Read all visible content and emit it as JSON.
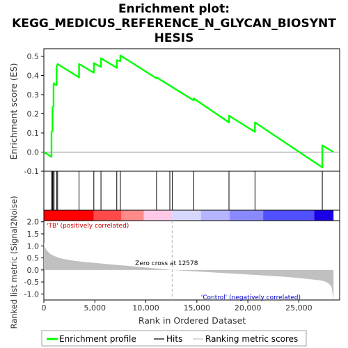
{
  "chart_data": {
    "type": "line",
    "title": [
      "Enrichment plot:",
      "KEGG_MEDICUS_REFERENCE_N_GLYCAN_BIOSYNT",
      "HESIS"
    ],
    "xlabel": "Rank in Ordered Dataset",
    "xlim": [
      0,
      29000
    ],
    "x_ticks": [
      0,
      5000,
      10000,
      15000,
      20000,
      25000
    ],
    "x_tick_labels": [
      "0",
      "5,000",
      "10,000",
      "15,000",
      "20,000",
      "25,000"
    ],
    "n_genes": 28400,
    "es_panel": {
      "ylabel": "Enrichment score (ES)",
      "ylim": [
        -0.1,
        0.54
      ],
      "y_ticks": [
        -0.1,
        0.0,
        0.1,
        0.2,
        0.3,
        0.4,
        0.5
      ],
      "y_tick_labels": [
        "-0.1",
        "0.0",
        "0.1",
        "0.2",
        "0.3",
        "0.4",
        "0.5"
      ],
      "series": [
        {
          "name": "Enrichment profile",
          "color": "#00ff00",
          "x": [
            0,
            750,
            750,
            850,
            850,
            950,
            950,
            1000,
            1000,
            1250,
            1250,
            1350,
            1350,
            3450,
            3450,
            4900,
            4900,
            5600,
            5600,
            7150,
            7150,
            7500,
            7500,
            11050,
            11050,
            14700,
            14700,
            18150,
            18150,
            20700,
            20700,
            27300,
            27300,
            28400
          ],
          "y": [
            0.0,
            -0.025,
            0.105,
            0.11,
            0.235,
            0.24,
            0.355,
            0.36,
            0.355,
            0.35,
            0.445,
            0.46,
            0.46,
            0.39,
            0.46,
            0.415,
            0.465,
            0.445,
            0.49,
            0.44,
            0.48,
            0.475,
            0.505,
            0.385,
            0.39,
            0.27,
            0.28,
            0.155,
            0.19,
            0.105,
            0.155,
            -0.08,
            0.035,
            0.0
          ]
        }
      ]
    },
    "hits": {
      "name": "Hits",
      "color": "#000000",
      "positions": [
        750,
        850,
        950,
        1000,
        1250,
        1350,
        3450,
        4900,
        5600,
        7150,
        7500,
        11050,
        12350,
        12600,
        14700,
        18150,
        20700,
        27300
      ]
    },
    "metric_panel": {
      "ylabel": "Ranked list metric (Signal2Noise)",
      "ylim": [
        -1.25,
        2.05
      ],
      "y_ticks": [
        -1.0,
        -0.5,
        0.0,
        0.5,
        1.0,
        1.5,
        2.0
      ],
      "y_tick_labels": [
        "-1.0",
        "-0.5",
        "0.0",
        "0.5",
        "1.0",
        "1.5",
        "2.0"
      ],
      "zero_cross": 12578,
      "zero_cross_label": "Zero cross at 12578",
      "positive_label": "'TB' (positively correlated)",
      "negative_label": "'Control' (negatively correlated)",
      "fill_color": "#c0c0c0",
      "metric_curve": {
        "x": [
          0,
          100,
          300,
          600,
          1000,
          1500,
          2000,
          3000,
          4000,
          5000,
          6000,
          7000,
          8000,
          9000,
          10000,
          11000,
          12000,
          12578,
          14000,
          16000,
          18000,
          20000,
          22000,
          24000,
          25000,
          26000,
          27000,
          27500,
          27900,
          28200,
          28400
        ],
        "y": [
          1.15,
          0.95,
          0.8,
          0.67,
          0.58,
          0.5,
          0.45,
          0.38,
          0.33,
          0.29,
          0.25,
          0.21,
          0.18,
          0.14,
          0.1,
          0.06,
          0.02,
          0.0,
          -0.04,
          -0.09,
          -0.14,
          -0.19,
          -0.24,
          -0.3,
          -0.34,
          -0.38,
          -0.43,
          -0.47,
          -0.55,
          -0.7,
          -1.22
        ]
      }
    },
    "color_bar": {
      "segments": [
        {
          "x0": 0,
          "x1": 4900,
          "color": "#ff0000"
        },
        {
          "x0": 4900,
          "x1": 7600,
          "color": "#ff4a4a"
        },
        {
          "x0": 7600,
          "x1": 9800,
          "color": "#ff8a8a"
        },
        {
          "x0": 9800,
          "x1": 12580,
          "color": "#ffc8e6"
        },
        {
          "x0": 12580,
          "x1": 15400,
          "color": "#d8d8ff"
        },
        {
          "x0": 15400,
          "x1": 18200,
          "color": "#b4b4ff"
        },
        {
          "x0": 18200,
          "x1": 21500,
          "color": "#8a8aff"
        },
        {
          "x0": 21500,
          "x1": 26500,
          "color": "#5050ff"
        },
        {
          "x0": 26500,
          "x1": 28400,
          "color": "#1a00e6"
        }
      ]
    },
    "legend": {
      "placement": "bottom",
      "items": [
        {
          "label": "Enrichment profile",
          "color": "#00ff00",
          "kind": "thick-line"
        },
        {
          "label": "Hits",
          "color": "#000000",
          "kind": "line"
        },
        {
          "label": "Ranking metric scores",
          "color": "#c0c0c0",
          "kind": "line"
        }
      ]
    },
    "colors": {
      "positive_text": "#cc0000",
      "negative_text": "#0000cc",
      "zero_text": "#000000",
      "grid_zero": "#808080",
      "axis": "#000000"
    }
  }
}
